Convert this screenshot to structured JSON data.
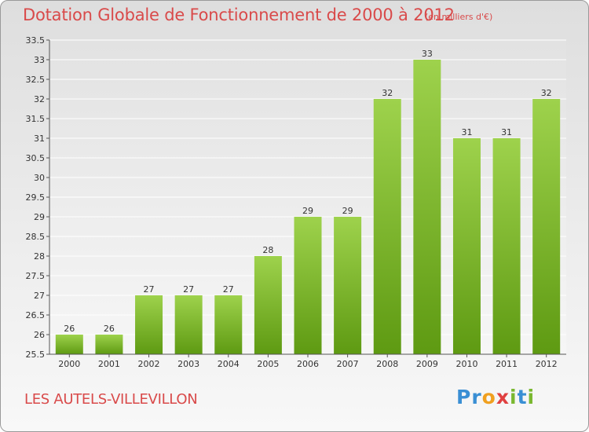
{
  "header": {
    "title": "Dotation Globale de Fonctionnement de 2000 à 2012",
    "subtitle": "(en milliers d'€)"
  },
  "footer": {
    "commune": "LES AUTELS-VILLEVILLON",
    "logo_letters": [
      "P",
      "r",
      "o",
      "x",
      "i",
      "t",
      "i"
    ],
    "logo_colors": [
      "#3a8fd4",
      "#3a8fd4",
      "#f0a020",
      "#e04040",
      "#7ab830",
      "#3a8fd4",
      "#7ab830"
    ]
  },
  "colors": {
    "bar_top": "#9ed24c",
    "bar_bottom": "#5e9a12",
    "accent": "#d94a4a"
  },
  "chart_data": {
    "type": "bar",
    "title": "Dotation Globale de Fonctionnement de 2000 à 2012",
    "subtitle": "(en milliers d'€)",
    "categories": [
      "2000",
      "2001",
      "2002",
      "2003",
      "2004",
      "2005",
      "2006",
      "2007",
      "2008",
      "2009",
      "2010",
      "2011",
      "2012"
    ],
    "values": [
      26,
      26,
      27,
      27,
      27,
      28,
      29,
      29,
      32,
      33,
      31,
      31,
      32
    ],
    "labels": [
      "26",
      "26",
      "27",
      "27",
      "27",
      "28",
      "29",
      "29",
      "32",
      "33",
      "31",
      "31",
      "32"
    ],
    "ylim": [
      25.5,
      33.5
    ],
    "yticks": [
      "25.5",
      "26",
      "26.5",
      "27",
      "27.5",
      "28",
      "28.5",
      "29",
      "29.5",
      "30",
      "30.5",
      "31",
      "31.5",
      "32",
      "32.5",
      "33",
      "33.5"
    ],
    "grid": true,
    "legend": "none"
  }
}
